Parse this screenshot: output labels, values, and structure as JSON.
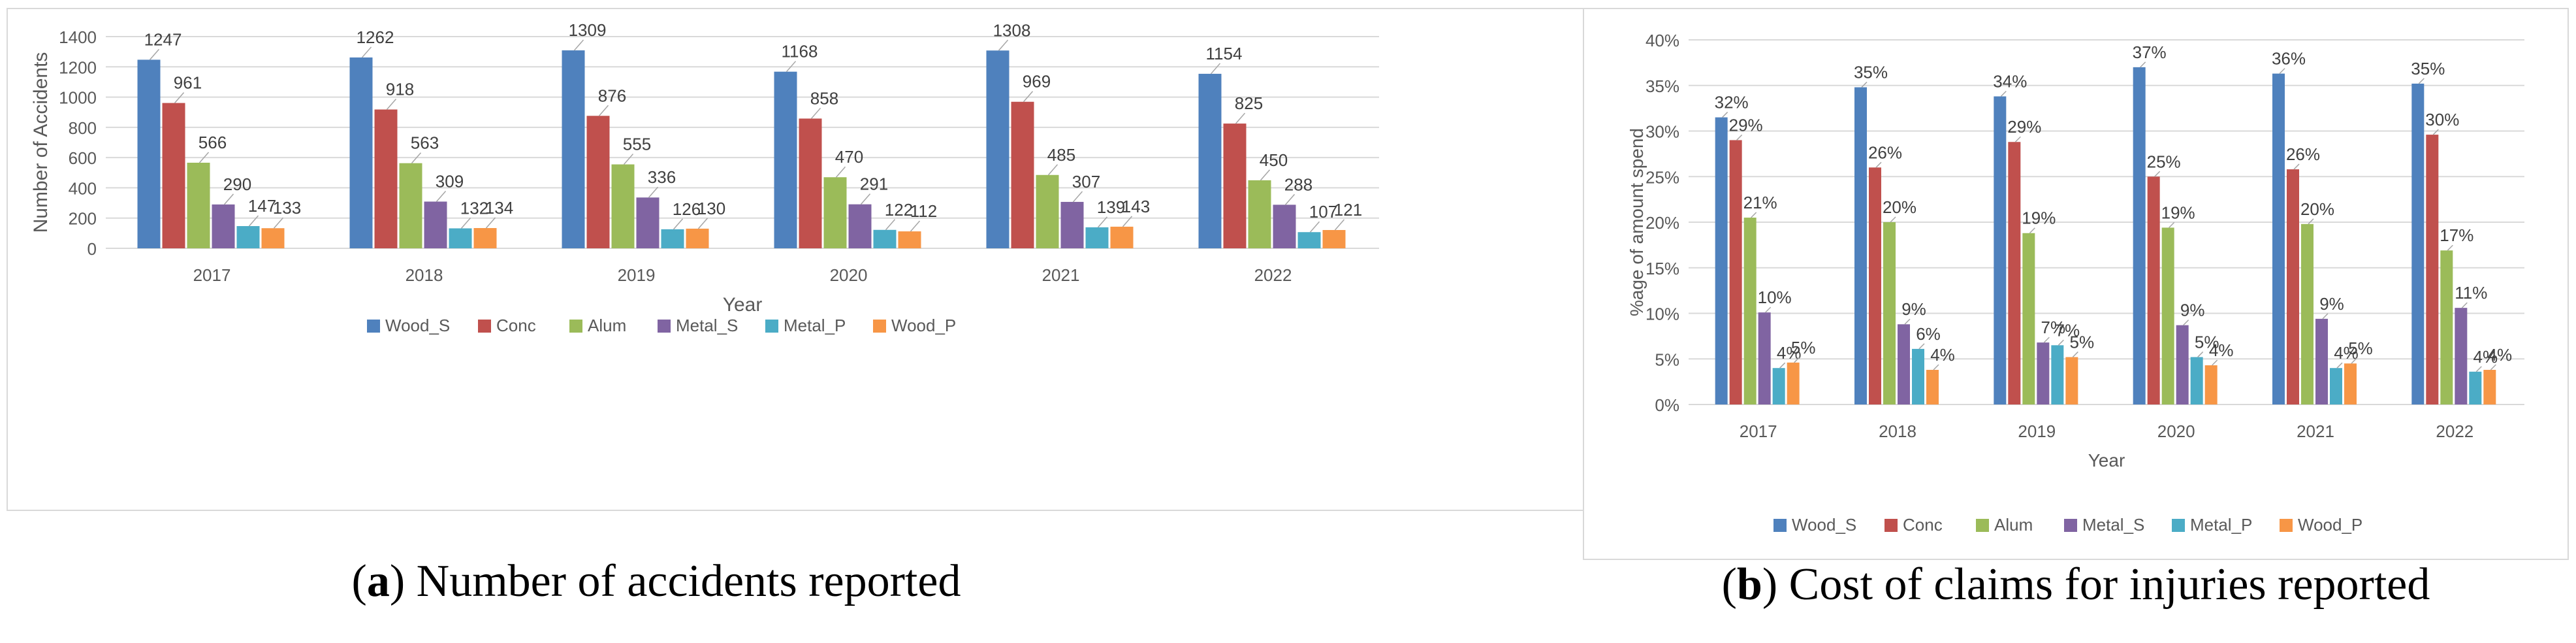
{
  "captions": [
    {
      "letter": "a",
      "text": " Number of accidents reported"
    },
    {
      "letter": "b",
      "text": " Cost of claims for injuries reported"
    }
  ],
  "colors": {
    "Wood_S": "#4f81bd",
    "Conc": "#c0504d",
    "Alum": "#9bbb59",
    "Metal_S": "#8064a2",
    "Metal_P": "#4bacc6",
    "Wood_P": "#f79646"
  },
  "chart_data": [
    {
      "type": "bar",
      "title": "",
      "xlabel": "Year",
      "ylabel": "Number of Accidents",
      "categories": [
        "2017",
        "2018",
        "2019",
        "2020",
        "2021",
        "2022"
      ],
      "ylim": [
        0,
        1400
      ],
      "yticks": [
        "0",
        "200",
        "400",
        "600",
        "800",
        "1000",
        "1200",
        "1400"
      ],
      "grid": true,
      "legend_position": "bottom",
      "series": [
        {
          "name": "Wood_S",
          "values": [
            1247,
            1262,
            1309,
            1168,
            1308,
            1154
          ],
          "labels": [
            "1247",
            "1262",
            "1309",
            "1168",
            "1308",
            "1154"
          ]
        },
        {
          "name": "Conc",
          "values": [
            961,
            918,
            876,
            858,
            969,
            825
          ],
          "labels": [
            "961",
            "918",
            "876",
            "858",
            "969",
            "825"
          ]
        },
        {
          "name": "Alum",
          "values": [
            566,
            563,
            555,
            470,
            485,
            450
          ],
          "labels": [
            "566",
            "563",
            "555",
            "470",
            "485",
            "450"
          ]
        },
        {
          "name": "Metal_S",
          "values": [
            290,
            309,
            336,
            291,
            307,
            288
          ],
          "labels": [
            "290",
            "309",
            "336",
            "291",
            "307",
            "288"
          ]
        },
        {
          "name": "Metal_P",
          "values": [
            147,
            132,
            126,
            122,
            139,
            107
          ],
          "labels": [
            "147",
            "132",
            "126",
            "122",
            "139",
            "107"
          ]
        },
        {
          "name": "Wood_P",
          "values": [
            133,
            134,
            130,
            112,
            143,
            121
          ],
          "labels": [
            "133",
            "134",
            "130",
            "112",
            "143",
            "121"
          ]
        }
      ]
    },
    {
      "type": "bar",
      "title": "",
      "xlabel": "Year",
      "ylabel": "%age of amount spend",
      "categories": [
        "2017",
        "2018",
        "2019",
        "2020",
        "2021",
        "2022"
      ],
      "ylim": [
        0,
        40
      ],
      "yticks": [
        "0%",
        "5%",
        "10%",
        "15%",
        "20%",
        "25%",
        "30%",
        "35%",
        "40%"
      ],
      "grid": true,
      "legend_position": "bottom",
      "series": [
        {
          "name": "Wood_S",
          "values": [
            31.5,
            34.8,
            33.8,
            37.0,
            36.3,
            35.2
          ],
          "labels": [
            "32%",
            "35%",
            "34%",
            "37%",
            "36%",
            "35%"
          ]
        },
        {
          "name": "Conc",
          "values": [
            29.0,
            26.0,
            28.8,
            25.0,
            25.8,
            29.6
          ],
          "labels": [
            "29%",
            "26%",
            "29%",
            "25%",
            "26%",
            "30%"
          ]
        },
        {
          "name": "Alum",
          "values": [
            20.5,
            20.0,
            18.8,
            19.4,
            19.8,
            16.9
          ],
          "labels": [
            "21%",
            "20%",
            "19%",
            "19%",
            "20%",
            "17%"
          ]
        },
        {
          "name": "Metal_S",
          "values": [
            10.1,
            8.8,
            6.8,
            8.7,
            9.4,
            10.6
          ],
          "labels": [
            "10%",
            "9%",
            "7%",
            "9%",
            "9%",
            "11%"
          ]
        },
        {
          "name": "Metal_P",
          "values": [
            4.0,
            6.1,
            6.5,
            5.2,
            4.0,
            3.6
          ],
          "labels": [
            "4%",
            "6%",
            "7%",
            "5%",
            "4%",
            "4%"
          ]
        },
        {
          "name": "Wood_P",
          "values": [
            4.6,
            3.8,
            5.2,
            4.3,
            4.5,
            3.8
          ],
          "labels": [
            "5%",
            "4%",
            "5%",
            "4%",
            "5%",
            "4%"
          ]
        }
      ]
    }
  ]
}
